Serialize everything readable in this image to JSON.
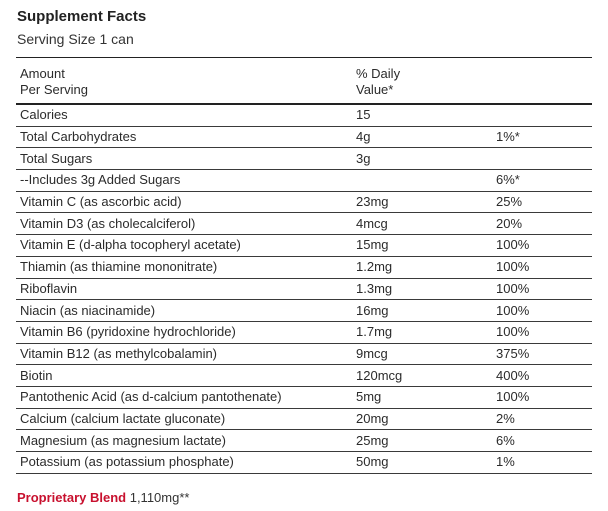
{
  "header": {
    "title": "Supplement Facts",
    "serving": "Serving Size 1 can"
  },
  "table": {
    "col_amount_line1": "Amount",
    "col_amount_line2": "Per Serving",
    "col_dv_line1": "% Daily",
    "col_dv_line2": "Value*",
    "rows": [
      {
        "name": "Calories",
        "amount": "15",
        "dv": ""
      },
      {
        "name": "Total Carbohydrates",
        "amount": "4g",
        "dv": "1%*"
      },
      {
        "name": "Total Sugars",
        "amount": "3g",
        "dv": ""
      },
      {
        "name": "--Includes 3g Added Sugars",
        "amount": "",
        "dv": "6%*"
      },
      {
        "name": "Vitamin C (as ascorbic acid)",
        "amount": "23mg",
        "dv": "25%"
      },
      {
        "name": "Vitamin D3 (as cholecalciferol)",
        "amount": "4mcg",
        "dv": "20%"
      },
      {
        "name": "Vitamin E (d-alpha tocopheryl acetate)",
        "amount": "15mg",
        "dv": "100%"
      },
      {
        "name": "Thiamin (as thiamine mononitrate)",
        "amount": "1.2mg",
        "dv": "100%"
      },
      {
        "name": "Riboflavin",
        "amount": "1.3mg",
        "dv": "100%"
      },
      {
        "name": "Niacin (as niacinamide)",
        "amount": "16mg",
        "dv": "100%"
      },
      {
        "name": "Vitamin B6 (pyridoxine hydrochloride)",
        "amount": "1.7mg",
        "dv": "100%"
      },
      {
        "name": "Vitamin B12 (as methylcobalamin)",
        "amount": "9mcg",
        "dv": "375%"
      },
      {
        "name": "Biotin",
        "amount": "120mcg",
        "dv": "400%"
      },
      {
        "name": "Pantothenic Acid (as d-calcium pantothenate)",
        "amount": "5mg",
        "dv": "100%"
      },
      {
        "name": "Calcium (calcium lactate gluconate)",
        "amount": "20mg",
        "dv": "2%"
      },
      {
        "name": "Magnesium (as magnesium lactate)",
        "amount": "25mg",
        "dv": "6%"
      },
      {
        "name": "Potassium (as potassium phosphate)",
        "amount": "50mg",
        "dv": "1%"
      }
    ]
  },
  "blend": {
    "label": "Proprietary Blend",
    "value": "1,110mg**"
  },
  "colors": {
    "accent": "#c8102e",
    "text": "#2b2b2b",
    "rule": "#3a3a3a"
  }
}
